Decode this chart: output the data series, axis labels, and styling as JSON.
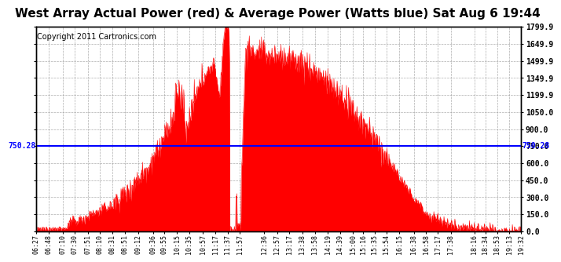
{
  "title": "West Array Actual Power (red) & Average Power (Watts blue) Sat Aug 6 19:44",
  "copyright": "Copyright 2011 Cartronics.com",
  "average_power": 750.28,
  "y_max": 1799.9,
  "y_min": 0.0,
  "y_ticks": [
    0.0,
    150.0,
    300.0,
    450.0,
    600.0,
    750.0,
    900.0,
    1050.0,
    1199.9,
    1349.9,
    1499.9,
    1649.9,
    1799.9
  ],
  "x_labels": [
    "06:27",
    "06:48",
    "07:10",
    "07:30",
    "07:51",
    "08:10",
    "08:31",
    "08:51",
    "09:12",
    "09:36",
    "09:55",
    "10:15",
    "10:35",
    "10:57",
    "11:17",
    "11:37",
    "11:57",
    "12:36",
    "12:57",
    "13:17",
    "13:38",
    "13:58",
    "14:19",
    "14:39",
    "15:00",
    "15:16",
    "15:35",
    "15:54",
    "16:15",
    "16:38",
    "16:58",
    "17:17",
    "17:38",
    "18:16",
    "18:34",
    "18:53",
    "19:13",
    "19:32"
  ],
  "bar_color": "#FF0000",
  "avg_line_color": "#0000FF",
  "background_color": "#FFFFFF",
  "grid_color": "#999999",
  "title_fontsize": 11,
  "copyright_fontsize": 7,
  "avg_label": "750.28"
}
